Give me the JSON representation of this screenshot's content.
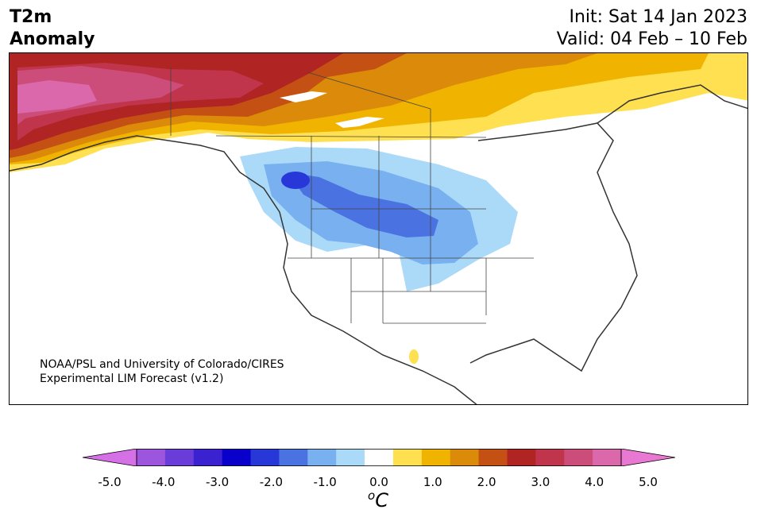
{
  "header": {
    "title_line1": "T2m",
    "title_line2": "Anomaly",
    "init": "Init: Sat 14 Jan 2023",
    "valid": "Valid: 04 Feb – 10 Feb"
  },
  "map": {
    "credit_line1": "NOAA/PSL and University of Colorado/CIRES",
    "credit_line2": "Experimental LIM Forecast (v1.2)"
  },
  "colorbar": {
    "colors": [
      "#d670e6",
      "#9c55dc",
      "#6a3cda",
      "#3a22d0",
      "#0a00cc",
      "#2838d8",
      "#4a72e0",
      "#78b0f0",
      "#aadaf8",
      "#ffffff",
      "#ffe050",
      "#f0b400",
      "#dc8a0a",
      "#c45014",
      "#b02424",
      "#c0344c",
      "#cc4c7a",
      "#dc68ac",
      "#e878d2"
    ],
    "tick_labels": [
      "-5.0",
      "-4.0",
      "-3.0",
      "-2.0",
      "-1.0",
      "0.0",
      "1.0",
      "2.0",
      "3.0",
      "4.0",
      "5.0"
    ],
    "units_base": "C",
    "units_sup": "o"
  }
}
